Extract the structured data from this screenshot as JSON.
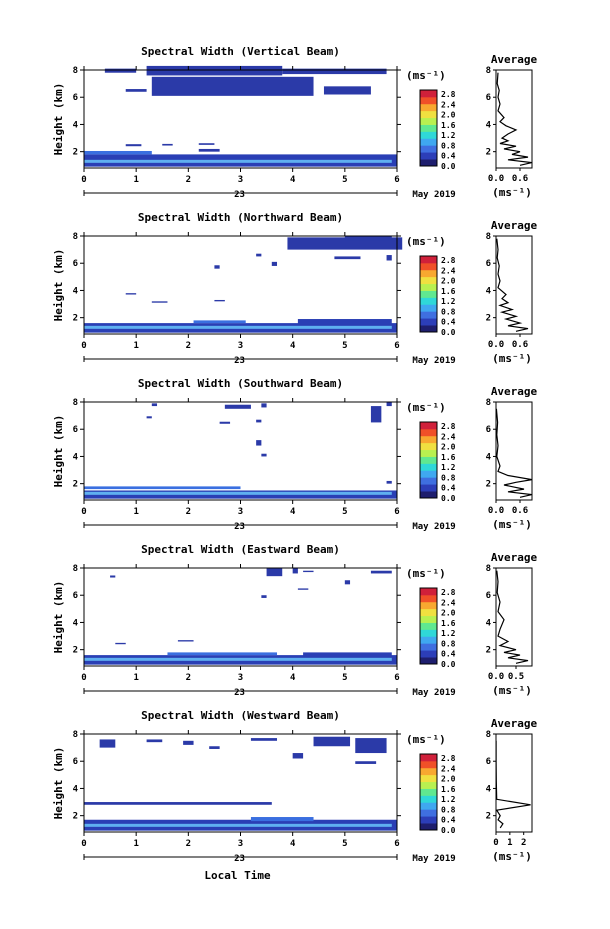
{
  "chart_data": {
    "type": "heatmap",
    "xlabel": "Local Time",
    "date_label": "23",
    "month_year": "May 2019",
    "x_ticks": [
      "0",
      "1",
      "2",
      "3",
      "4",
      "5",
      "6"
    ],
    "y_ticks": [
      "2",
      "4",
      "6",
      "8"
    ],
    "xlim": [
      0,
      6
    ],
    "ylim": [
      0.8,
      8.0
    ],
    "ylabel": "Height (km)",
    "unit_label": "(ms⁻¹)",
    "colorbar_ticks": [
      "2.8",
      "2.4",
      "2.0",
      "1.6",
      "1.2",
      "0.8",
      "0.4",
      "0.0"
    ],
    "colorbar_ticks_short": [
      "2.8",
      "2.4",
      "2.0",
      "1.6",
      "1.2",
      "0.8",
      "0.4",
      "0.0"
    ],
    "colorbar_colors": [
      "#1e1e6e",
      "#2c3eb8",
      "#3f6fe0",
      "#3fa8f0",
      "#2fd8d8",
      "#60e890",
      "#b8f050",
      "#f0e040",
      "#f8a830",
      "#f05028",
      "#d0203a"
    ],
    "panels": [
      {
        "title": "Spectral Width (Vertical Beam)",
        "avg_title": "Average",
        "avg_xticks": [
          "0.0",
          "0.6"
        ],
        "avg_xlim": [
          0,
          0.9
        ],
        "avg_unit": "(ms⁻¹)",
        "cells": [
          [
            0.4,
            7.8,
            0.6,
            0.3
          ],
          [
            1.2,
            7.6,
            2.6,
            0.7
          ],
          [
            3.8,
            7.7,
            2.0,
            0.4
          ],
          [
            1.3,
            6.1,
            3.1,
            1.4
          ],
          [
            4.6,
            6.2,
            0.9,
            0.6
          ],
          [
            0.8,
            6.4,
            0.4,
            0.2
          ],
          [
            0.8,
            2.4,
            0.3,
            0.15
          ],
          [
            1.5,
            2.45,
            0.2,
            0.12
          ],
          [
            2.2,
            2.5,
            0.3,
            0.12
          ],
          [
            2.2,
            2.0,
            0.4,
            0.2
          ],
          [
            0.0,
            0.9,
            6.0,
            0.9
          ],
          [
            0.0,
            1.8,
            1.3,
            0.25
          ],
          [
            2.8,
            1.2,
            0.9,
            0.35
          ]
        ],
        "avg_profile": [
          [
            0.6,
            1.0
          ],
          [
            0.9,
            1.2
          ],
          [
            0.3,
            1.4
          ],
          [
            0.8,
            1.6
          ],
          [
            0.4,
            1.8
          ],
          [
            0.6,
            2.0
          ],
          [
            0.2,
            2.2
          ],
          [
            0.5,
            2.4
          ],
          [
            0.1,
            2.6
          ],
          [
            0.3,
            2.8
          ],
          [
            0.15,
            3.0
          ],
          [
            0.3,
            3.3
          ],
          [
            0.5,
            3.6
          ],
          [
            0.25,
            3.9
          ],
          [
            0.1,
            4.2
          ],
          [
            0.2,
            4.5
          ],
          [
            0.05,
            5.0
          ],
          [
            0.1,
            5.5
          ],
          [
            0.05,
            6.0
          ],
          [
            0.08,
            6.5
          ],
          [
            0.03,
            7.0
          ],
          [
            0.05,
            7.8
          ]
        ]
      },
      {
        "title": "Spectral Width (Northward Beam)",
        "avg_title": "Average",
        "avg_xticks": [
          "0.0",
          "0.6"
        ],
        "avg_xlim": [
          0,
          0.9
        ],
        "avg_unit": "(ms⁻¹)",
        "cells": [
          [
            3.9,
            7.0,
            2.2,
            0.9
          ],
          [
            5.0,
            7.7,
            0.9,
            0.3
          ],
          [
            4.8,
            6.3,
            0.5,
            0.2
          ],
          [
            5.8,
            6.2,
            0.1,
            0.4
          ],
          [
            3.3,
            6.5,
            0.1,
            0.2
          ],
          [
            2.5,
            5.6,
            0.1,
            0.25
          ],
          [
            3.6,
            5.8,
            0.1,
            0.3
          ],
          [
            0.8,
            3.7,
            0.2,
            0.1
          ],
          [
            1.3,
            3.1,
            0.3,
            0.1
          ],
          [
            2.5,
            3.2,
            0.2,
            0.1
          ],
          [
            0.0,
            0.9,
            6.0,
            0.7
          ],
          [
            2.1,
            1.6,
            1.0,
            0.2
          ],
          [
            4.1,
            1.5,
            1.8,
            0.4
          ]
        ],
        "avg_profile": [
          [
            0.5,
            1.0
          ],
          [
            0.8,
            1.2
          ],
          [
            0.3,
            1.4
          ],
          [
            0.6,
            1.6
          ],
          [
            0.25,
            1.9
          ],
          [
            0.5,
            2.1
          ],
          [
            0.15,
            2.4
          ],
          [
            0.4,
            2.6
          ],
          [
            0.1,
            2.9
          ],
          [
            0.3,
            3.1
          ],
          [
            0.15,
            3.4
          ],
          [
            0.25,
            3.7
          ],
          [
            0.05,
            4.2
          ],
          [
            0.1,
            4.7
          ],
          [
            0.05,
            5.2
          ],
          [
            0.08,
            5.8
          ],
          [
            0.03,
            6.4
          ],
          [
            0.05,
            7.0
          ],
          [
            0.02,
            7.8
          ]
        ]
      },
      {
        "title": "Spectral Width (Southward Beam)",
        "avg_title": "Average",
        "avg_xticks": [
          "0.0",
          "0.6"
        ],
        "avg_xlim": [
          0,
          0.9
        ],
        "avg_unit": "(ms⁻¹)",
        "cells": [
          [
            2.7,
            7.5,
            0.5,
            0.3
          ],
          [
            3.4,
            7.6,
            0.1,
            0.3
          ],
          [
            5.5,
            6.5,
            0.2,
            1.2
          ],
          [
            5.8,
            7.7,
            0.1,
            0.3
          ],
          [
            1.3,
            7.7,
            0.1,
            0.2
          ],
          [
            1.2,
            6.8,
            0.1,
            0.15
          ],
          [
            2.6,
            6.4,
            0.2,
            0.15
          ],
          [
            3.3,
            6.5,
            0.1,
            0.2
          ],
          [
            3.3,
            4.8,
            0.1,
            0.4
          ],
          [
            3.4,
            4.0,
            0.1,
            0.2
          ],
          [
            0.0,
            0.9,
            6.0,
            0.6
          ],
          [
            0.0,
            1.6,
            3.0,
            0.2
          ],
          [
            5.8,
            2.0,
            0.1,
            0.2
          ]
        ],
        "avg_profile": [
          [
            0.6,
            1.0
          ],
          [
            0.9,
            1.2
          ],
          [
            0.3,
            1.4
          ],
          [
            0.7,
            1.6
          ],
          [
            0.2,
            1.9
          ],
          [
            0.5,
            2.1
          ],
          [
            0.9,
            2.3
          ],
          [
            0.3,
            2.6
          ],
          [
            0.05,
            2.9
          ],
          [
            0.1,
            3.3
          ],
          [
            0.02,
            4.0
          ],
          [
            0.05,
            4.8
          ],
          [
            0.02,
            5.6
          ],
          [
            0.04,
            6.5
          ],
          [
            0.01,
            7.5
          ]
        ]
      },
      {
        "title": "Spectral Width (Eastward Beam)",
        "avg_title": "Average",
        "avg_xticks": [
          "0.0",
          "0.5"
        ],
        "avg_xlim": [
          0,
          0.9
        ],
        "avg_unit": "(ms⁻¹)",
        "cells": [
          [
            3.5,
            7.4,
            0.3,
            0.6
          ],
          [
            4.0,
            7.6,
            0.1,
            0.4
          ],
          [
            5.5,
            7.6,
            0.4,
            0.2
          ],
          [
            4.2,
            7.7,
            0.2,
            0.1
          ],
          [
            5.0,
            6.8,
            0.1,
            0.3
          ],
          [
            0.5,
            7.3,
            0.1,
            0.15
          ],
          [
            4.1,
            6.4,
            0.2,
            0.1
          ],
          [
            3.4,
            5.8,
            0.1,
            0.2
          ],
          [
            1.8,
            2.6,
            0.3,
            0.1
          ],
          [
            0.6,
            2.4,
            0.2,
            0.1
          ],
          [
            0.0,
            0.9,
            6.0,
            0.7
          ],
          [
            1.6,
            1.6,
            2.1,
            0.2
          ],
          [
            4.2,
            1.5,
            1.7,
            0.3
          ]
        ],
        "avg_profile": [
          [
            0.5,
            1.0
          ],
          [
            0.8,
            1.2
          ],
          [
            0.3,
            1.4
          ],
          [
            0.6,
            1.6
          ],
          [
            0.2,
            1.8
          ],
          [
            0.5,
            2.0
          ],
          [
            0.1,
            2.3
          ],
          [
            0.3,
            2.6
          ],
          [
            0.05,
            3.0
          ],
          [
            0.1,
            3.5
          ],
          [
            0.2,
            4.2
          ],
          [
            0.05,
            4.8
          ],
          [
            0.1,
            5.5
          ],
          [
            0.03,
            6.2
          ],
          [
            0.05,
            7.0
          ],
          [
            0.02,
            7.8
          ]
        ]
      },
      {
        "title": "Spectral Width (Westward Beam)",
        "avg_title": "Average",
        "avg_xticks": [
          "0",
          "1",
          "2"
        ],
        "avg_xlim": [
          0,
          2.6
        ],
        "avg_unit": "(ms⁻¹)",
        "cells": [
          [
            0.3,
            7.0,
            0.3,
            0.6
          ],
          [
            1.2,
            7.4,
            0.3,
            0.2
          ],
          [
            1.9,
            7.2,
            0.2,
            0.3
          ],
          [
            3.2,
            7.5,
            0.5,
            0.2
          ],
          [
            4.4,
            7.1,
            0.7,
            0.7
          ],
          [
            5.2,
            6.6,
            0.6,
            1.1
          ],
          [
            4.0,
            6.2,
            0.2,
            0.4
          ],
          [
            5.2,
            5.8,
            0.4,
            0.2
          ],
          [
            2.4,
            6.9,
            0.2,
            0.2
          ],
          [
            0.0,
            2.8,
            3.6,
            0.2
          ],
          [
            0.0,
            0.9,
            6.0,
            0.8
          ],
          [
            3.2,
            1.6,
            1.2,
            0.3
          ]
        ],
        "avg_profile": [
          [
            0.3,
            1.1
          ],
          [
            0.5,
            1.4
          ],
          [
            0.15,
            1.7
          ],
          [
            0.3,
            2.0
          ],
          [
            0.05,
            2.4
          ],
          [
            2.5,
            2.8
          ],
          [
            0.05,
            3.2
          ],
          [
            0.02,
            4.5
          ],
          [
            0.01,
            6.0
          ],
          [
            0.01,
            7.5
          ]
        ]
      }
    ]
  }
}
